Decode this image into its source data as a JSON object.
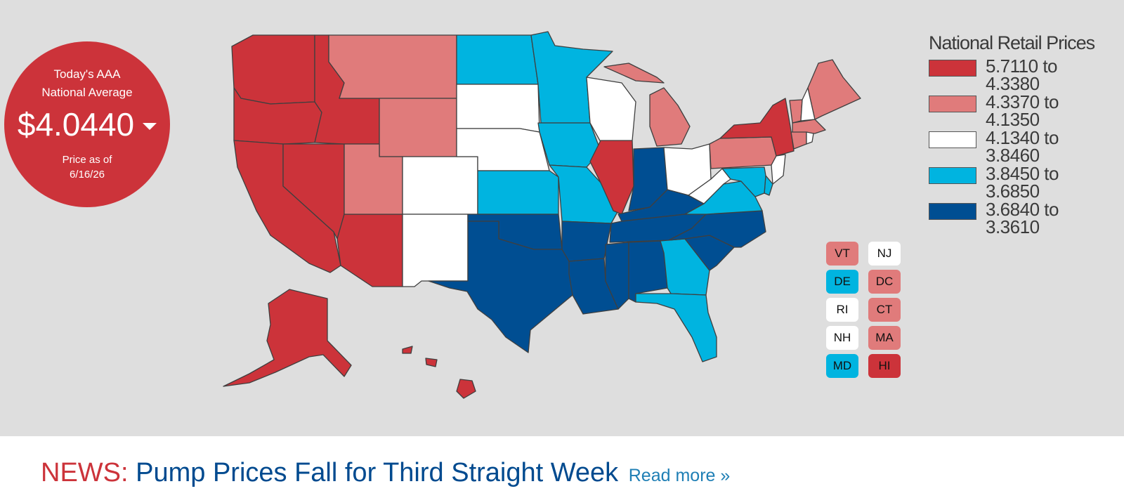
{
  "badge": {
    "line1": "Today's AAA",
    "line2": "National Average",
    "price": "$4.0440",
    "asof_line1": "Price as of",
    "asof_line2": "6/16/26",
    "color": "#cc333a"
  },
  "legend": {
    "title": "National Retail Prices",
    "items": [
      {
        "from": "5.7110 to",
        "to": "4.3380",
        "color": "#cc333a"
      },
      {
        "from": "4.3370 to",
        "to": "4.1350",
        "color": "#e07b7b"
      },
      {
        "from": "4.1340 to",
        "to": "3.8460",
        "color": "#ffffff"
      },
      {
        "from": "3.8450 to",
        "to": "3.6850",
        "color": "#00b4e0"
      },
      {
        "from": "3.6840 to",
        "to": "3.3610",
        "color": "#004e92"
      }
    ]
  },
  "small_states": [
    {
      "code": "VT",
      "color": "#e07b7b"
    },
    {
      "code": "NJ",
      "color": "#ffffff"
    },
    {
      "code": "DE",
      "color": "#00b4e0"
    },
    {
      "code": "DC",
      "color": "#e07b7b"
    },
    {
      "code": "RI",
      "color": "#ffffff"
    },
    {
      "code": "CT",
      "color": "#e07b7b"
    },
    {
      "code": "NH",
      "color": "#ffffff"
    },
    {
      "code": "MA",
      "color": "#e07b7b"
    },
    {
      "code": "MD",
      "color": "#00b4e0"
    },
    {
      "code": "HI",
      "color": "#cc333a"
    }
  ],
  "news": {
    "tag": "NEWS:",
    "headline": "Pump Prices Fall for Third Straight Week",
    "read_more": "Read more »"
  }
}
